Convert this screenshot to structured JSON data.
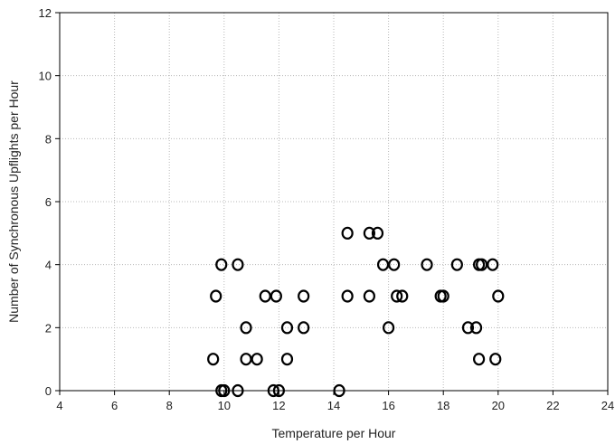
{
  "chart_data": {
    "type": "scatter",
    "title": "",
    "xlabel": "Temperature per Hour",
    "ylabel": "Number of Synchronous Upflights per Hour",
    "xlim": [
      4,
      24
    ],
    "ylim": [
      0,
      12
    ],
    "x_ticks": [
      "4",
      "6",
      "8",
      "10",
      "12",
      "14",
      "16",
      "18",
      "20",
      "22",
      "24"
    ],
    "y_ticks": [
      "0",
      "2",
      "4",
      "6",
      "8",
      "10",
      "12"
    ],
    "grid": true,
    "marker": "open-circle",
    "points": [
      {
        "x": 9.6,
        "y": 1
      },
      {
        "x": 9.7,
        "y": 3
      },
      {
        "x": 9.9,
        "y": 4
      },
      {
        "x": 9.9,
        "y": 0
      },
      {
        "x": 10.0,
        "y": 0
      },
      {
        "x": 10.5,
        "y": 4
      },
      {
        "x": 10.5,
        "y": 0
      },
      {
        "x": 10.8,
        "y": 2
      },
      {
        "x": 10.8,
        "y": 1
      },
      {
        "x": 11.2,
        "y": 1
      },
      {
        "x": 11.5,
        "y": 3
      },
      {
        "x": 11.8,
        "y": 0
      },
      {
        "x": 11.9,
        "y": 3
      },
      {
        "x": 12.0,
        "y": 0
      },
      {
        "x": 12.3,
        "y": 2
      },
      {
        "x": 12.3,
        "y": 1
      },
      {
        "x": 12.9,
        "y": 3
      },
      {
        "x": 12.9,
        "y": 2
      },
      {
        "x": 14.2,
        "y": 0
      },
      {
        "x": 14.5,
        "y": 5
      },
      {
        "x": 14.5,
        "y": 3
      },
      {
        "x": 15.3,
        "y": 5
      },
      {
        "x": 15.3,
        "y": 3
      },
      {
        "x": 15.6,
        "y": 5
      },
      {
        "x": 15.8,
        "y": 4
      },
      {
        "x": 16.0,
        "y": 2
      },
      {
        "x": 16.2,
        "y": 4
      },
      {
        "x": 16.3,
        "y": 3
      },
      {
        "x": 16.5,
        "y": 3
      },
      {
        "x": 17.4,
        "y": 4
      },
      {
        "x": 17.9,
        "y": 3
      },
      {
        "x": 18.0,
        "y": 3
      },
      {
        "x": 18.5,
        "y": 4
      },
      {
        "x": 18.9,
        "y": 2
      },
      {
        "x": 19.2,
        "y": 2
      },
      {
        "x": 19.3,
        "y": 1
      },
      {
        "x": 19.3,
        "y": 4
      },
      {
        "x": 19.4,
        "y": 4
      },
      {
        "x": 19.8,
        "y": 4
      },
      {
        "x": 19.9,
        "y": 1
      },
      {
        "x": 20.0,
        "y": 3
      }
    ]
  }
}
